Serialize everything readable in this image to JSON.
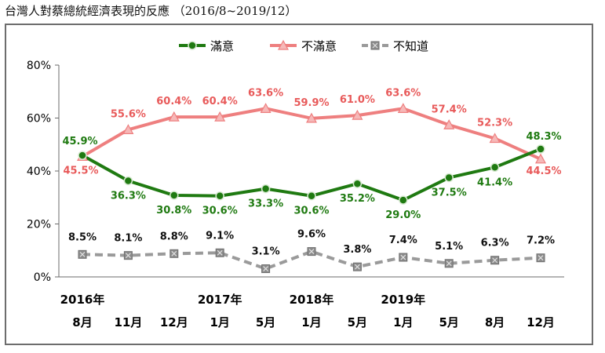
{
  "title": "台灣人對蔡總統經濟表現的反應 （2016/8~2019/12）",
  "chart_data": {
    "type": "line",
    "title": "台灣人對蔡總統經濟表現的反應 （2016/8~2019/12）",
    "categories": [
      "8月",
      "11月",
      "12月",
      "1月",
      "5月",
      "1月",
      "5月",
      "1月",
      "5月",
      "8月",
      "12月"
    ],
    "year_labels": [
      {
        "index": 0,
        "label": "2016年"
      },
      {
        "index": 3,
        "label": "2017年"
      },
      {
        "index": 5,
        "label": "2018年"
      },
      {
        "index": 7,
        "label": "2019年"
      }
    ],
    "ylim": [
      0,
      80
    ],
    "yticks": [
      0,
      20,
      40,
      60,
      80
    ],
    "ytick_labels": [
      "0%",
      "20%",
      "40%",
      "60%",
      "80%"
    ],
    "grid": false,
    "legend_position": "top-center",
    "series": [
      {
        "name": "滿意",
        "color": "#1f7a11",
        "marker": "circle",
        "values": [
          45.9,
          36.3,
          30.8,
          30.6,
          33.3,
          30.6,
          35.2,
          29.0,
          37.5,
          41.4,
          48.3
        ],
        "labels": [
          "45.9%",
          "36.3%",
          "30.8%",
          "30.6%",
          "33.3%",
          "30.6%",
          "35.2%",
          "29.0%",
          "37.5%",
          "41.4%",
          "48.3%"
        ]
      },
      {
        "name": "不滿意",
        "color": "#ee7f7f",
        "marker": "triangle",
        "values": [
          45.5,
          55.6,
          60.4,
          60.4,
          63.6,
          59.9,
          61.0,
          63.6,
          57.4,
          52.3,
          44.5
        ],
        "labels": [
          "45.5%",
          "55.6%",
          "60.4%",
          "60.4%",
          "63.6%",
          "59.9%",
          "61.0%",
          "63.6%",
          "57.4%",
          "52.3%",
          "44.5%"
        ]
      },
      {
        "name": "不知道",
        "color": "#9a9a9a",
        "marker": "x-square",
        "values": [
          8.5,
          8.1,
          8.8,
          9.1,
          3.1,
          9.6,
          3.8,
          7.4,
          5.1,
          6.3,
          7.2
        ],
        "labels": [
          "8.5%",
          "8.1%",
          "8.8%",
          "9.1%",
          "3.1%",
          "9.6%",
          "3.8%",
          "7.4%",
          "5.1%",
          "6.3%",
          "7.2%"
        ]
      }
    ]
  }
}
